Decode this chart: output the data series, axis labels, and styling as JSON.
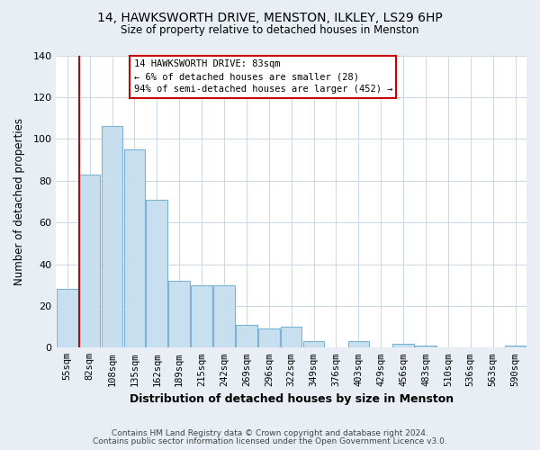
{
  "title_line1": "14, HAWKSWORTH DRIVE, MENSTON, ILKLEY, LS29 6HP",
  "title_line2": "Size of property relative to detached houses in Menston",
  "xlabel": "Distribution of detached houses by size in Menston",
  "ylabel": "Number of detached properties",
  "bar_color": "#c8dff0",
  "bar_edge_color": "#7bb3d4",
  "categories": [
    "55sqm",
    "82sqm",
    "108sqm",
    "135sqm",
    "162sqm",
    "189sqm",
    "215sqm",
    "242sqm",
    "269sqm",
    "296sqm",
    "322sqm",
    "349sqm",
    "376sqm",
    "403sqm",
    "429sqm",
    "456sqm",
    "483sqm",
    "510sqm",
    "536sqm",
    "563sqm",
    "590sqm"
  ],
  "values": [
    28,
    83,
    106,
    95,
    71,
    32,
    30,
    30,
    11,
    9,
    10,
    3,
    0,
    3,
    0,
    2,
    1,
    0,
    0,
    0,
    1
  ],
  "ylim": [
    0,
    140
  ],
  "yticks": [
    0,
    20,
    40,
    60,
    80,
    100,
    120,
    140
  ],
  "annotation_line": "14 HAWKSWORTH DRIVE: 83sqm",
  "annotation_smaller": "← 6% of detached houses are smaller (28)",
  "annotation_larger": "94% of semi-detached houses are larger (452) →",
  "vline_x": 1,
  "vline_color": "#cc0000",
  "annotation_box_edge": "#cc0000",
  "footer_line1": "Contains HM Land Registry data © Crown copyright and database right 2024.",
  "footer_line2": "Contains public sector information licensed under the Open Government Licence v3.0.",
  "background_color": "#e8eef4",
  "plot_background": "#ffffff"
}
